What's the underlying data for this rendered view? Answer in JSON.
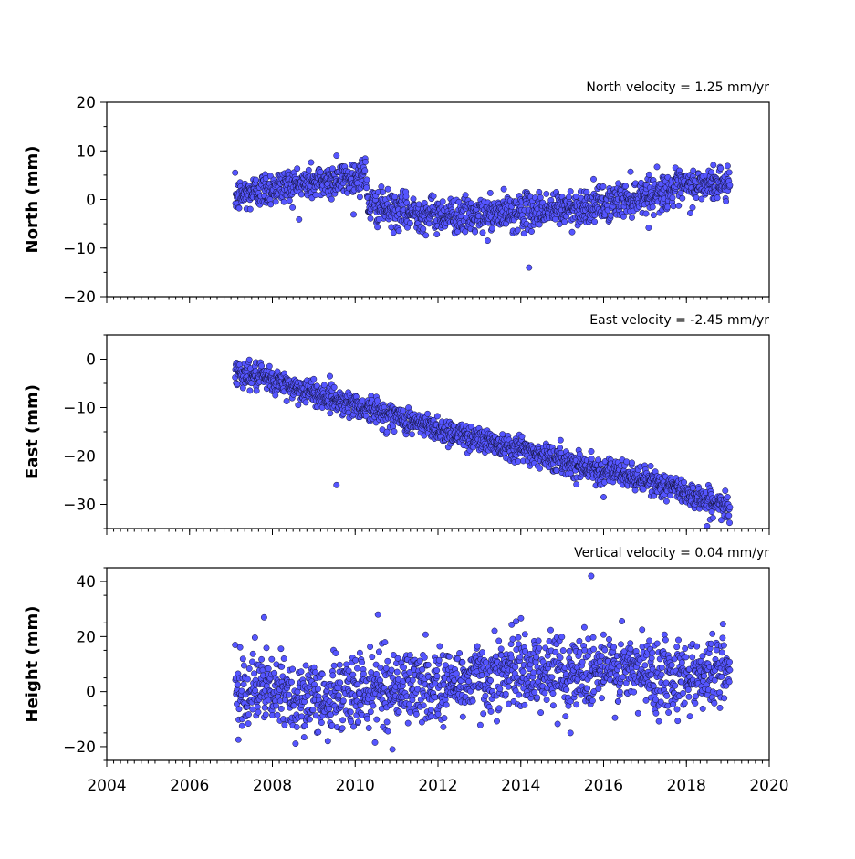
{
  "colors": {
    "marker_fill": "#5555ff",
    "marker_edge": "#111133",
    "axes": "#000000",
    "background": "#ffffff"
  },
  "chart_data": [
    {
      "type": "scatter",
      "title": "North velocity = 1.25 mm/yr",
      "ylabel": "North (mm)",
      "xlabel": "",
      "xlim": [
        2004,
        2020
      ],
      "ylim": [
        -20,
        20
      ],
      "yticks": [
        20,
        10,
        0,
        -10,
        -20
      ],
      "ytick_labels": [
        "20",
        "10",
        "0",
        "−10",
        "−20"
      ],
      "xticks": [
        2004,
        2006,
        2008,
        2010,
        2012,
        2014,
        2016,
        2018,
        2020
      ],
      "xtick_labels": [],
      "data_range": [
        2007.1,
        2019.05
      ],
      "trend_anchors": {
        "x": [
          2007.1,
          2008.0,
          2009.0,
          2010.0,
          2010.25,
          2010.3,
          2011.0,
          2012.0,
          2013.0,
          2014.0,
          2015.0,
          2016.0,
          2017.0,
          2018.0,
          2019.05
        ],
        "y": [
          0.5,
          2.5,
          3.5,
          4.5,
          5.5,
          -1.0,
          -2.5,
          -3.0,
          -3.5,
          -2.5,
          -2.0,
          -1.0,
          1.0,
          2.5,
          3.5
        ]
      },
      "scatter_amplitude": 1.8,
      "outliers": [
        {
          "x": 2014.2,
          "y": -14
        },
        {
          "x": 2009.55,
          "y": 9
        }
      ],
      "series": [
        {
          "values_note": "",
          "x": [],
          "y": []
        }
      ]
    },
    {
      "type": "scatter",
      "title": "East velocity = -2.45 mm/yr",
      "ylabel": "East (mm)",
      "xlabel": "",
      "xlim": [
        2004,
        2020
      ],
      "ylim": [
        -35,
        5
      ],
      "yticks": [
        0,
        -10,
        -20,
        -30
      ],
      "ytick_labels": [
        "0",
        "−10",
        "−20",
        "−30"
      ],
      "xticks": [
        2004,
        2006,
        2008,
        2010,
        2012,
        2014,
        2016,
        2018,
        2020
      ],
      "xtick_labels": [],
      "data_range": [
        2007.1,
        2019.05
      ],
      "trend_anchors": {
        "x": [
          2007.1,
          2008.0,
          2009.0,
          2010.0,
          2011.0,
          2012.0,
          2013.0,
          2014.0,
          2015.0,
          2016.0,
          2017.0,
          2018.0,
          2019.05
        ],
        "y": [
          -2.5,
          -4.5,
          -7.0,
          -9.5,
          -12.0,
          -14.5,
          -16.5,
          -18.5,
          -21.0,
          -23.0,
          -25.0,
          -27.5,
          -31.0
        ]
      },
      "scatter_amplitude": 1.3,
      "outliers": [
        {
          "x": 2009.55,
          "y": -26
        },
        {
          "x": 2016.0,
          "y": -28.5
        },
        {
          "x": 2018.5,
          "y": -34.5
        }
      ],
      "series": [
        {
          "values_note": "",
          "x": [],
          "y": []
        }
      ]
    },
    {
      "type": "scatter",
      "title": "Vertical velocity = 0.04 mm/yr",
      "ylabel": "Height (mm)",
      "xlabel": "",
      "xlim": [
        2004,
        2020
      ],
      "ylim": [
        -25,
        45
      ],
      "yticks": [
        40,
        20,
        0,
        -20
      ],
      "ytick_labels": [
        "40",
        "20",
        "0",
        "−20"
      ],
      "xticks": [
        2004,
        2006,
        2008,
        2010,
        2012,
        2014,
        2016,
        2018,
        2020
      ],
      "xtick_labels": [
        "2004",
        "2006",
        "2008",
        "2010",
        "2012",
        "2014",
        "2016",
        "2018",
        "2020"
      ],
      "data_range": [
        2007.1,
        2019.05
      ],
      "trend_anchors": {
        "x": [
          2007.1,
          2008.0,
          2009.0,
          2010.0,
          2011.0,
          2012.0,
          2013.0,
          2014.0,
          2015.0,
          2016.0,
          2017.0,
          2018.0,
          2019.05
        ],
        "y": [
          2.0,
          0.0,
          -3.0,
          0.0,
          2.0,
          2.0,
          5.0,
          8.0,
          7.0,
          8.0,
          7.0,
          6.0,
          8.0
        ]
      },
      "scatter_amplitude": 6.5,
      "outliers": [
        {
          "x": 2015.7,
          "y": 42
        },
        {
          "x": 2010.55,
          "y": 28
        },
        {
          "x": 2007.8,
          "y": 27
        },
        {
          "x": 2010.9,
          "y": -21
        },
        {
          "x": 2015.2,
          "y": -15
        }
      ],
      "series": [
        {
          "values_note": "",
          "x": [],
          "y": []
        }
      ]
    }
  ]
}
